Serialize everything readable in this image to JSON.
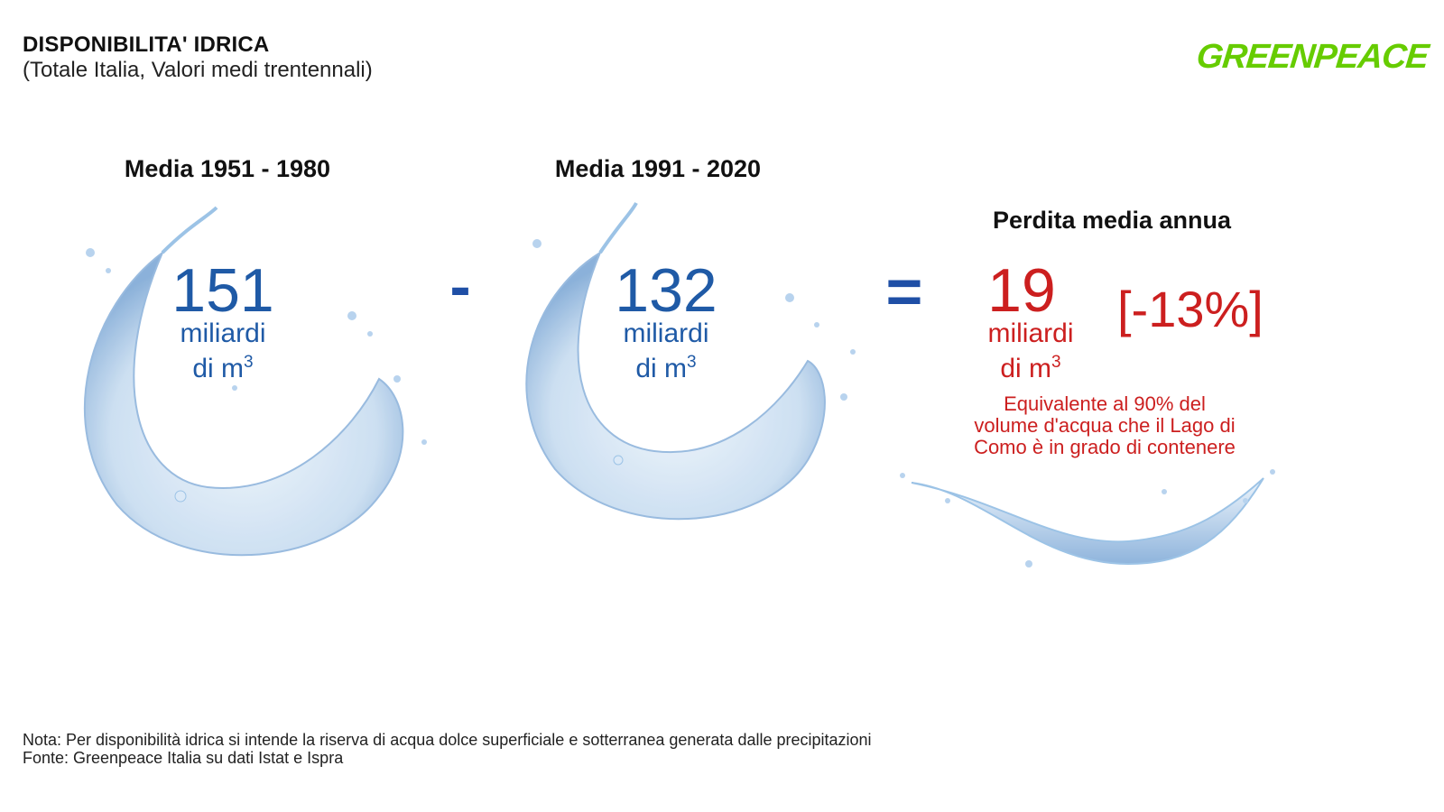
{
  "header": {
    "title": "DISPONIBILITA' IDRICA",
    "subtitle": "(Totale Italia, Valori medi trentennali)",
    "logo": "GREENPEACE",
    "logo_color": "#66cc00"
  },
  "left": {
    "period": "Media 1951 - 1980",
    "value": "151",
    "unit_line1": "miliardi",
    "unit_line2": "di m",
    "unit_sup": "3"
  },
  "middle": {
    "period": "Media 1991 - 2020",
    "value": "132",
    "unit_line1": "miliardi",
    "unit_line2": "di m",
    "unit_sup": "3"
  },
  "operators": {
    "minus": "-",
    "equals": "="
  },
  "right": {
    "heading": "Perdita media annua",
    "value": "19",
    "unit_line1": "miliardi",
    "unit_line2": "di m",
    "unit_sup": "3",
    "percent": "[-13%]",
    "equivalence_line1": "Equivalente al 90% del",
    "equivalence_line2": "volume d'acqua che il Lago di",
    "equivalence_line3": "Como è in grado di contenere"
  },
  "colors": {
    "blue": "#1f5aa6",
    "red": "#cc1f1f",
    "water": "#9cc3e6"
  },
  "footer": {
    "note": "Nota: Per disponibilità idrica si intende la riserva di acqua dolce superficiale e sotterranea generata dalle precipitazioni",
    "source": "Fonte: Greenpeace Italia su dati Istat e Ispra"
  }
}
